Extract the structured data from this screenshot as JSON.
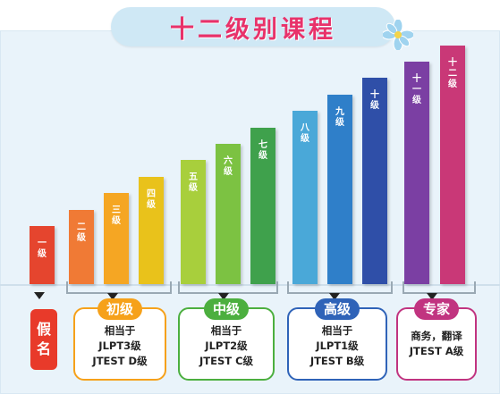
{
  "title": "十二级别课程",
  "colors": {
    "title": "#e8326a",
    "beginner": "#f6a11a",
    "intermediate": "#4caf3f",
    "advanced": "#2f63b8",
    "expert": "#c13480"
  },
  "bars": [
    {
      "label": "一级",
      "level": 1,
      "color": "#e5452e"
    },
    {
      "label": "二级",
      "level": 2,
      "color": "#f07a35"
    },
    {
      "label": "三级",
      "level": 3,
      "color": "#f5a623"
    },
    {
      "label": "四级",
      "level": 4,
      "color": "#e9c21b"
    },
    {
      "label": "五级",
      "level": 5,
      "color": "#a8cf3c"
    },
    {
      "label": "六级",
      "level": 6,
      "color": "#7cc242"
    },
    {
      "label": "七级",
      "level": 7,
      "color": "#3fa14c"
    },
    {
      "label": "八级",
      "level": 8,
      "color": "#4aa8d8"
    },
    {
      "label": "九级",
      "level": 9,
      "color": "#2f7fc9"
    },
    {
      "label": "十级",
      "level": 10,
      "color": "#2f4fa8"
    },
    {
      "label": "十一级",
      "level": 11,
      "color": "#7b3fa3"
    },
    {
      "label": "十二级",
      "level": 12,
      "color": "#c93877"
    }
  ],
  "kana": {
    "label": "假名"
  },
  "levels": [
    {
      "name": "初级",
      "lines": [
        "相当于",
        "JLPT3级",
        "JTEST D级"
      ]
    },
    {
      "name": "中级",
      "lines": [
        "相当于",
        "JLPT2级",
        "JTEST C级"
      ]
    },
    {
      "name": "高级",
      "lines": [
        "相当于",
        "JLPT1级",
        "JTEST B级"
      ]
    },
    {
      "name": "专家",
      "lines": [
        "商务，翻译",
        "JTEST A级"
      ]
    }
  ]
}
